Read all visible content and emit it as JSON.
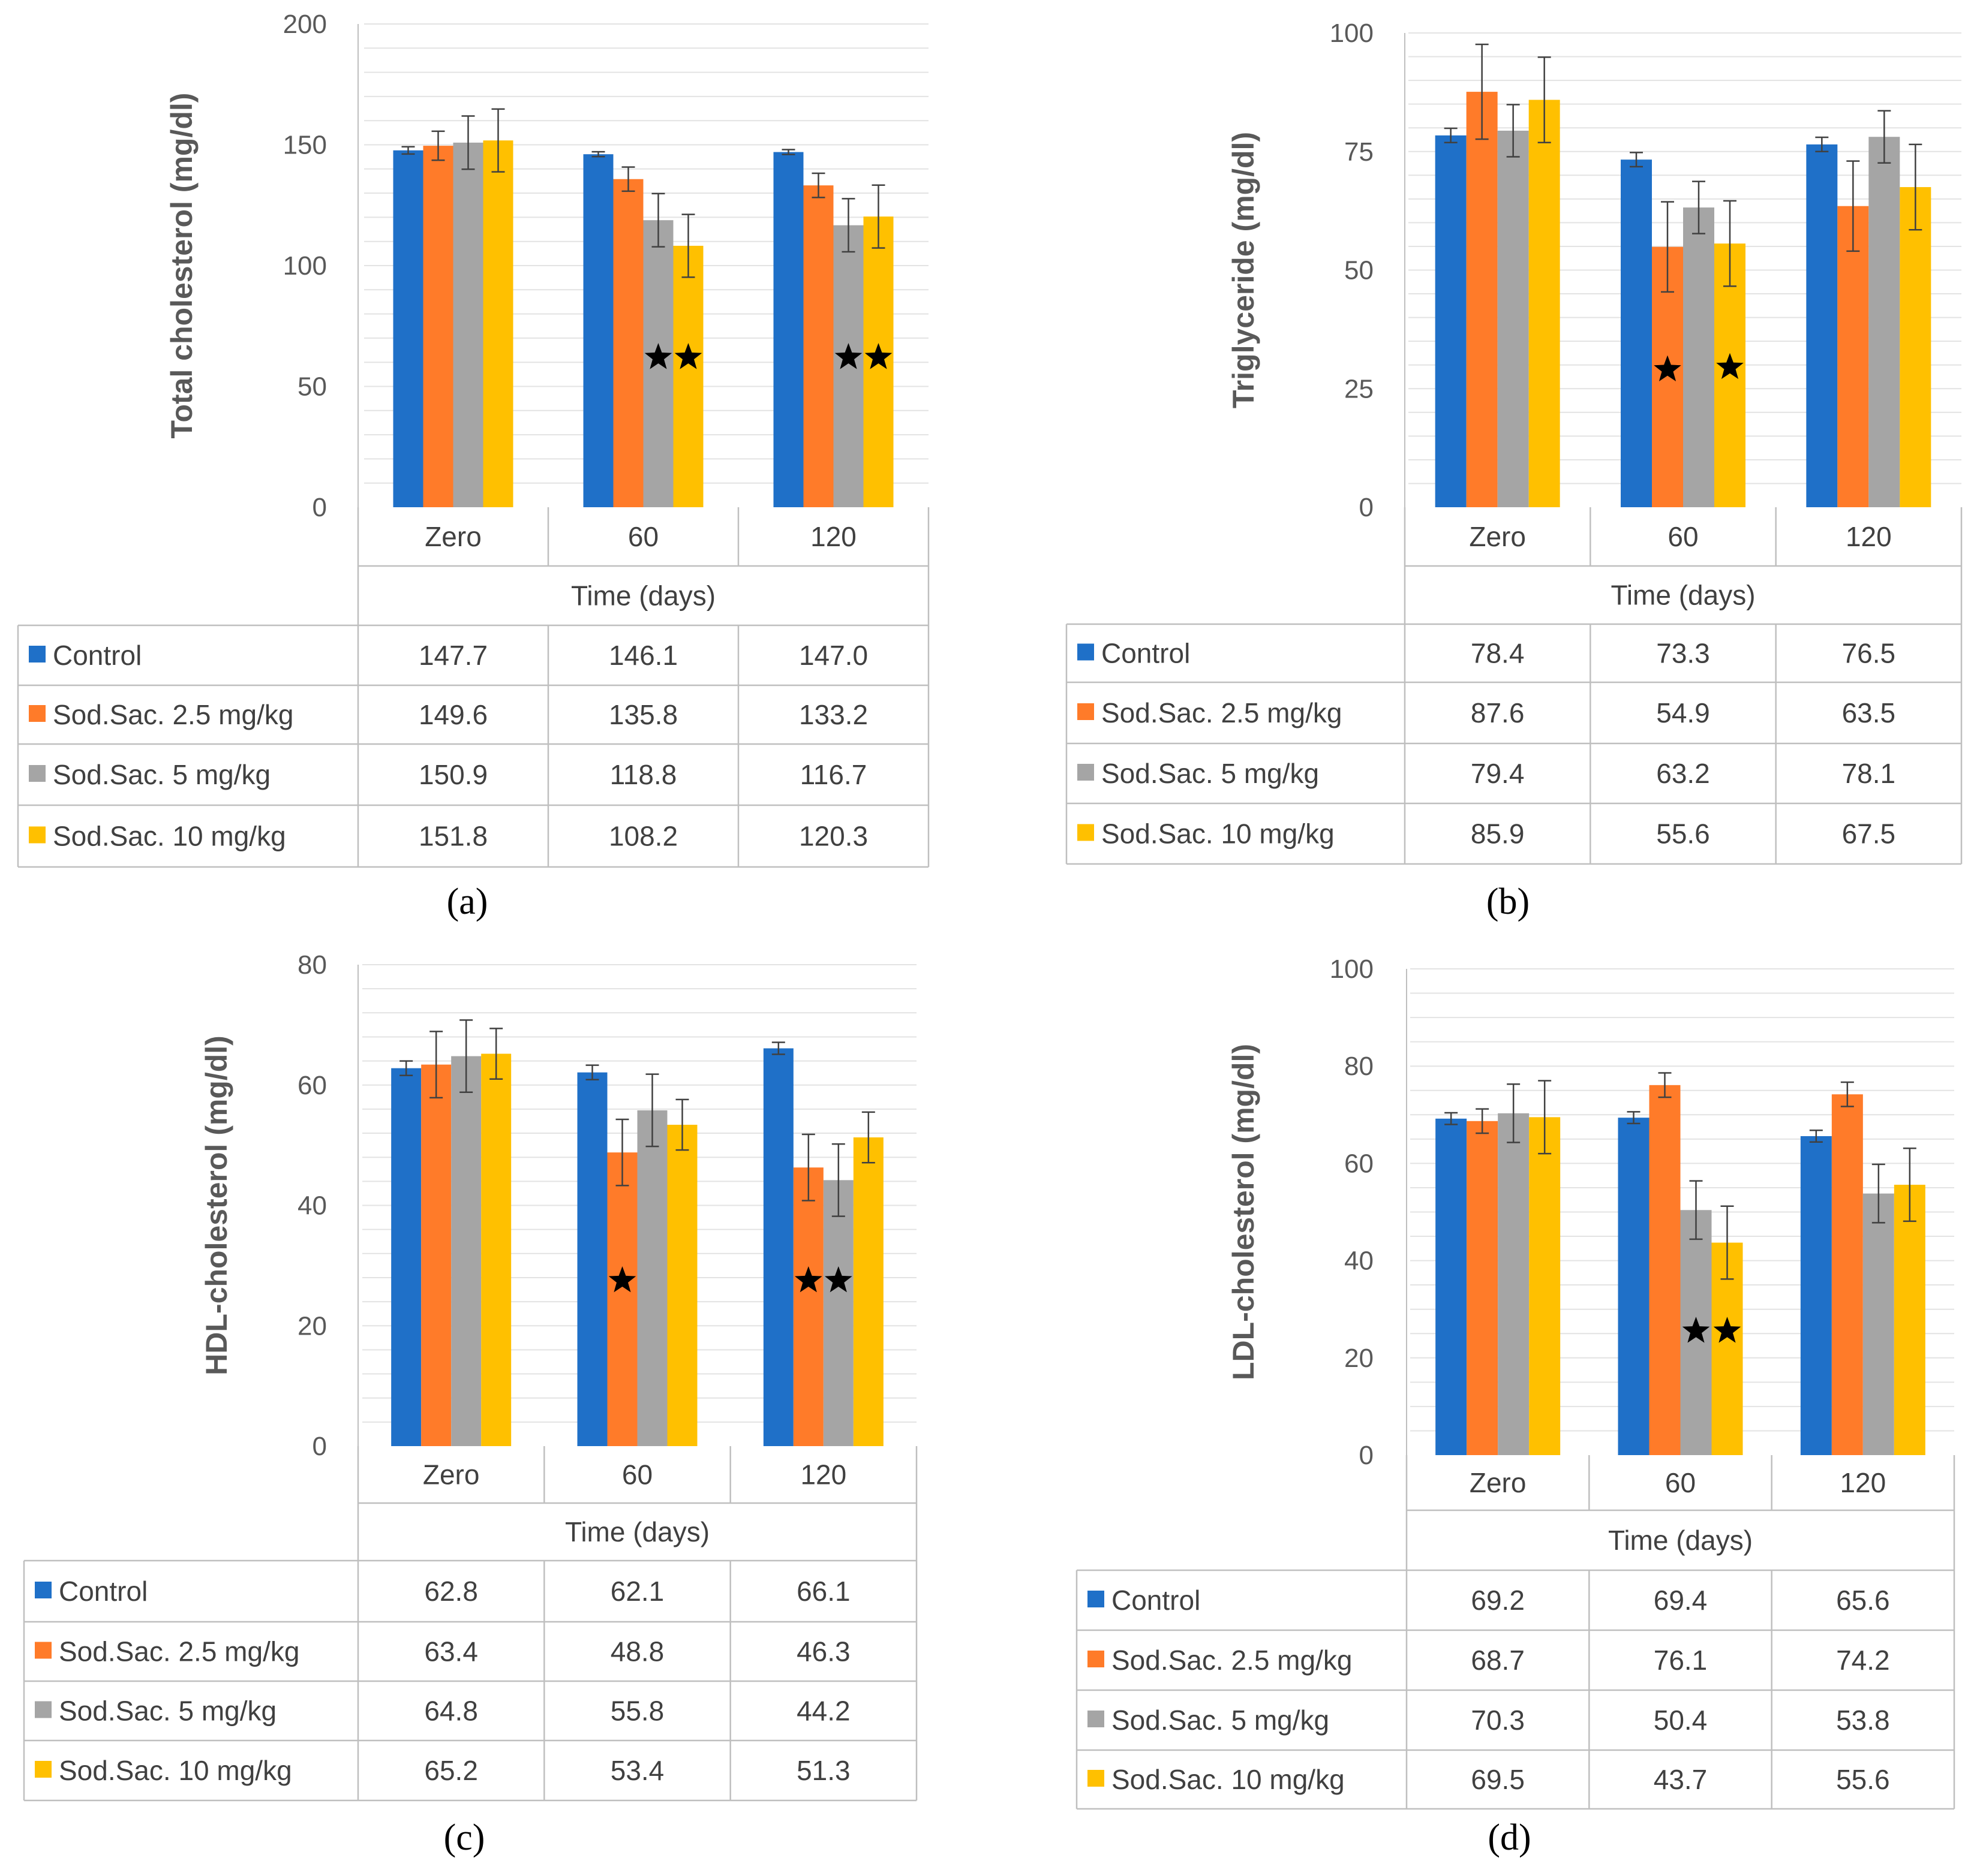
{
  "figure": {
    "x_axis_title": "Time (days)",
    "categories": [
      "Zero",
      "60",
      "120"
    ],
    "series_colors": [
      "#1f70c8",
      "#ff7b29",
      "#a5a5a5",
      "#ffc000"
    ],
    "significance_icon": "star-icon"
  },
  "chart_data": [
    {
      "type": "bar",
      "panel_label": "(a)",
      "title": "",
      "ylabel": "Total cholesterol (mg/dl)",
      "xlabel": "Time (days)",
      "categories": [
        "Zero",
        "60",
        "120"
      ],
      "ylim": [
        0,
        200
      ],
      "yticks": [
        0,
        50,
        100,
        150,
        200
      ],
      "grid": true,
      "series": [
        {
          "name": "Control",
          "values": [
            147.7,
            146.1,
            147.0
          ],
          "errors": [
            1.5,
            1.0,
            1.0
          ]
        },
        {
          "name": "Sod.Sac. 2.5 mg/kg",
          "values": [
            149.6,
            135.8,
            133.2
          ],
          "errors": [
            6,
            5,
            5
          ]
        },
        {
          "name": "Sod.Sac. 5 mg/kg",
          "values": [
            150.9,
            118.8,
            116.7
          ],
          "errors": [
            11,
            11,
            11
          ]
        },
        {
          "name": "Sod.Sac. 10 mg/kg",
          "values": [
            151.8,
            108.2,
            120.3
          ],
          "errors": [
            13,
            13,
            13
          ]
        }
      ],
      "table": [
        [
          "147.7",
          "146.1",
          "147.0"
        ],
        [
          "149.6",
          "135.8",
          "133.2"
        ],
        [
          "150.9",
          "118.8",
          "116.7"
        ],
        [
          "151.8",
          "108.2",
          "120.3"
        ]
      ],
      "stars": [
        {
          "series": 2,
          "category": 1,
          "y": 62
        },
        {
          "series": 3,
          "category": 1,
          "y": 62
        },
        {
          "series": 2,
          "category": 2,
          "y": 62
        },
        {
          "series": 3,
          "category": 2,
          "y": 62
        }
      ]
    },
    {
      "type": "bar",
      "panel_label": "(b)",
      "title": "",
      "ylabel": "Triglyceride (mg/dl)",
      "xlabel": "Time (days)",
      "categories": [
        "Zero",
        "60",
        "120"
      ],
      "ylim": [
        0,
        100
      ],
      "yticks": [
        0,
        25,
        50,
        75,
        100
      ],
      "grid": true,
      "series": [
        {
          "name": "Control",
          "values": [
            78.4,
            73.3,
            76.5
          ],
          "errors": [
            1.5,
            1.5,
            1.5
          ]
        },
        {
          "name": "Sod.Sac. 2.5 mg/kg",
          "values": [
            87.6,
            54.9,
            63.5
          ],
          "errors": [
            10,
            9.5,
            9.5
          ]
        },
        {
          "name": "Sod.Sac. 5 mg/kg",
          "values": [
            79.4,
            63.2,
            78.1
          ],
          "errors": [
            5.5,
            5.5,
            5.5
          ]
        },
        {
          "name": "Sod.Sac. 10 mg/kg",
          "values": [
            85.9,
            55.6,
            67.5
          ],
          "errors": [
            9,
            9,
            9
          ]
        }
      ],
      "table": [
        [
          "78.4",
          "73.3",
          "76.5"
        ],
        [
          "87.6",
          "54.9",
          "63.5"
        ],
        [
          "79.4",
          "63.2",
          "78.1"
        ],
        [
          "85.9",
          "55.6",
          "67.5"
        ]
      ],
      "stars": [
        {
          "series": 1,
          "category": 1,
          "y": 29
        },
        {
          "series": 3,
          "category": 1,
          "y": 29.5
        }
      ]
    },
    {
      "type": "bar",
      "panel_label": "(c)",
      "title": "",
      "ylabel": "HDL-cholesterol (mg/dl)",
      "xlabel": "Time (days)",
      "categories": [
        "Zero",
        "60",
        "120"
      ],
      "ylim": [
        0,
        80
      ],
      "yticks": [
        0,
        20,
        40,
        60,
        80
      ],
      "grid": true,
      "series": [
        {
          "name": "Control",
          "values": [
            62.8,
            62.1,
            66.1
          ],
          "errors": [
            1.2,
            1.2,
            1.0
          ]
        },
        {
          "name": "Sod.Sac. 2.5 mg/kg",
          "values": [
            63.4,
            48.8,
            46.3
          ],
          "errors": [
            5.5,
            5.5,
            5.5
          ]
        },
        {
          "name": "Sod.Sac. 5 mg/kg",
          "values": [
            64.8,
            55.8,
            44.2
          ],
          "errors": [
            6,
            6,
            6
          ]
        },
        {
          "name": "Sod.Sac. 10 mg/kg",
          "values": [
            65.2,
            53.4,
            51.3
          ],
          "errors": [
            4.2,
            4.2,
            4.2
          ]
        }
      ],
      "table": [
        [
          "62.8",
          "62.1",
          "66.1"
        ],
        [
          "63.4",
          "48.8",
          "46.3"
        ],
        [
          "64.8",
          "55.8",
          "44.2"
        ],
        [
          "65.2",
          "53.4",
          "51.3"
        ]
      ],
      "stars": [
        {
          "series": 1,
          "category": 1,
          "y": 27.5
        },
        {
          "series": 1,
          "category": 2,
          "y": 27.5
        },
        {
          "series": 2,
          "category": 2,
          "y": 27.5
        }
      ]
    },
    {
      "type": "bar",
      "panel_label": "(d)",
      "title": "",
      "ylabel": "LDL-cholesterol (mg/dl)",
      "xlabel": "Time (days)",
      "categories": [
        "Zero",
        "60",
        "120"
      ],
      "ylim": [
        0,
        100
      ],
      "yticks": [
        0,
        20,
        40,
        60,
        80,
        100
      ],
      "grid": true,
      "series": [
        {
          "name": "Control",
          "values": [
            69.2,
            69.4,
            65.6
          ],
          "errors": [
            1.2,
            1.2,
            1.2
          ]
        },
        {
          "name": "Sod.Sac. 2.5 mg/kg",
          "values": [
            68.7,
            76.1,
            74.2
          ],
          "errors": [
            2.5,
            2.5,
            2.5
          ]
        },
        {
          "name": "Sod.Sac. 5 mg/kg",
          "values": [
            70.3,
            50.4,
            53.8
          ],
          "errors": [
            6,
            6,
            6
          ]
        },
        {
          "name": "Sod.Sac. 10 mg/kg",
          "values": [
            69.5,
            43.7,
            55.6
          ],
          "errors": [
            7.5,
            7.5,
            7.5
          ]
        }
      ],
      "table": [
        [
          "69.2",
          "69.4",
          "65.6"
        ],
        [
          "68.7",
          "76.1",
          "74.2"
        ],
        [
          "70.3",
          "50.4",
          "53.8"
        ],
        [
          "69.5",
          "43.7",
          "55.6"
        ]
      ],
      "stars": [
        {
          "series": 2,
          "category": 1,
          "y": 25.5
        },
        {
          "series": 3,
          "category": 1,
          "y": 25.5
        }
      ]
    }
  ]
}
